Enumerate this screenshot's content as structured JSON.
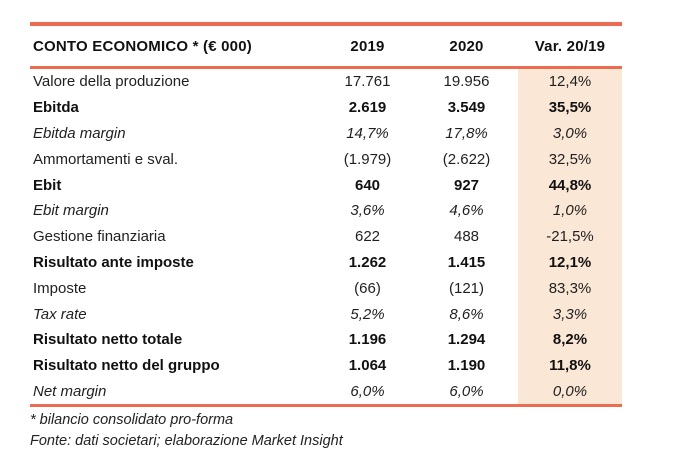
{
  "accent_color": "#ED6B51",
  "highlight_color": "#FBE7D6",
  "table": {
    "title": "CONTO ECONOMICO * (€ 000)",
    "columns": [
      "2019",
      "2020",
      "Var. 20/19"
    ],
    "rows": [
      {
        "label": "Valore della produzione",
        "y2019": "17.761",
        "y2020": "19.956",
        "var": "12,4%",
        "style": "regular"
      },
      {
        "label": "Ebitda",
        "y2019": "2.619",
        "y2020": "3.549",
        "var": "35,5%",
        "style": "bold"
      },
      {
        "label": "Ebitda margin",
        "y2019": "14,7%",
        "y2020": "17,8%",
        "var": "3,0%",
        "style": "italic"
      },
      {
        "label": "Ammortamenti e sval.",
        "y2019": "(1.979)",
        "y2020": "(2.622)",
        "var": "32,5%",
        "style": "regular"
      },
      {
        "label": "Ebit",
        "y2019": "640",
        "y2020": "927",
        "var": "44,8%",
        "style": "bold"
      },
      {
        "label": "Ebit margin",
        "y2019": "3,6%",
        "y2020": "4,6%",
        "var": "1,0%",
        "style": "italic"
      },
      {
        "label": "Gestione finanziaria",
        "y2019": "622",
        "y2020": "488",
        "var": "-21,5%",
        "style": "regular"
      },
      {
        "label": "Risultato ante imposte",
        "y2019": "1.262",
        "y2020": "1.415",
        "var": "12,1%",
        "style": "bold"
      },
      {
        "label": "Imposte",
        "y2019": "(66)",
        "y2020": "(121)",
        "var": "83,3%",
        "style": "regular"
      },
      {
        "label": "Tax rate",
        "y2019": "5,2%",
        "y2020": "8,6%",
        "var": "3,3%",
        "style": "italic"
      },
      {
        "label": "Risultato netto totale",
        "y2019": "1.196",
        "y2020": "1.294",
        "var": "8,2%",
        "style": "bold"
      },
      {
        "label": "Risultato netto del gruppo",
        "y2019": "1.064",
        "y2020": "1.190",
        "var": "11,8%",
        "style": "bold"
      },
      {
        "label": "Net margin",
        "y2019": "6,0%",
        "y2020": "6,0%",
        "var": "0,0%",
        "style": "italic"
      }
    ]
  },
  "footnotes": [
    "* bilancio consolidato pro-forma",
    "Fonte: dati societari; elaborazione Market Insight"
  ]
}
